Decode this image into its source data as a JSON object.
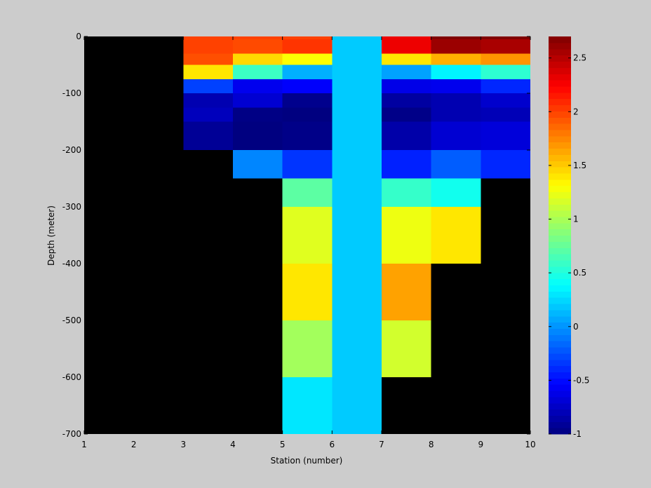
{
  "chart_data": {
    "type": "heatmap",
    "title": "",
    "xlabel": "Station (number)",
    "ylabel": "Depth (meter)",
    "xlim": [
      1,
      10
    ],
    "ylim": [
      -700,
      0
    ],
    "x_ticks": [
      1,
      2,
      3,
      4,
      5,
      6,
      7,
      8,
      9,
      10
    ],
    "y_ticks": [
      0,
      -100,
      -200,
      -300,
      -400,
      -500,
      -600,
      -700
    ],
    "colorbar": {
      "colormap": "jet",
      "range": [
        -1,
        2.7
      ],
      "ticks": [
        -1,
        -0.5,
        0,
        0.5,
        1,
        1.5,
        2,
        2.5
      ],
      "tick_labels": [
        "-1",
        "-0.5",
        "0",
        "0.5",
        "1",
        "1.5",
        "2",
        "2.5"
      ]
    },
    "missing_color": "#000000",
    "depth_edges": [
      0,
      -5,
      -30,
      -50,
      -75,
      -100,
      -125,
      -150,
      -200,
      -250,
      -300,
      -400,
      -500,
      -600,
      -700
    ],
    "columns": [
      {
        "x0": 1,
        "x1": 2,
        "values": [
          null,
          null,
          null,
          null,
          null,
          null,
          null,
          null,
          null,
          null,
          null,
          null,
          null,
          null
        ]
      },
      {
        "x0": 2,
        "x1": 3,
        "values": [
          null,
          null,
          null,
          null,
          null,
          null,
          null,
          null,
          null,
          null,
          null,
          null,
          null,
          null
        ]
      },
      {
        "x0": 3,
        "x1": 4,
        "values": [
          2.0,
          2.0,
          1.95,
          1.4,
          -0.3,
          -0.82,
          -0.78,
          -0.92,
          null,
          null,
          null,
          null,
          null,
          null
        ]
      },
      {
        "x0": 4,
        "x1": 5,
        "values": [
          2.0,
          1.97,
          1.45,
          0.6,
          -0.6,
          -0.7,
          -0.98,
          -1.0,
          -0.05,
          null,
          null,
          null,
          null,
          null
        ]
      },
      {
        "x0": 5,
        "x1": 6,
        "values": [
          2.0,
          2.05,
          1.3,
          0.1,
          -0.55,
          -0.95,
          -1.0,
          -0.97,
          -0.35,
          0.72,
          1.2,
          1.4,
          0.98,
          0.3
        ]
      },
      {
        "x0": 6,
        "x1": 7,
        "values": [
          0.2,
          0.2,
          0.2,
          0.2,
          0.2,
          0.2,
          0.2,
          0.2,
          0.2,
          0.2,
          0.2,
          0.2,
          0.2,
          0.2
        ]
      },
      {
        "x0": 7,
        "x1": 8,
        "values": [
          2.3,
          2.3,
          1.4,
          0.05,
          -0.62,
          -0.88,
          -0.97,
          -0.85,
          -0.42,
          0.58,
          1.25,
          1.65,
          1.15,
          null
        ]
      },
      {
        "x0": 8,
        "x1": 9,
        "values": [
          2.7,
          2.6,
          1.6,
          0.35,
          -0.6,
          -0.82,
          -0.82,
          -0.7,
          -0.2,
          0.45,
          1.4,
          null,
          null,
          null
        ]
      },
      {
        "x0": 9,
        "x1": 10,
        "values": [
          2.7,
          2.55,
          1.7,
          0.55,
          -0.4,
          -0.72,
          -0.8,
          -0.67,
          -0.4,
          null,
          null,
          null,
          null,
          null
        ]
      }
    ]
  }
}
